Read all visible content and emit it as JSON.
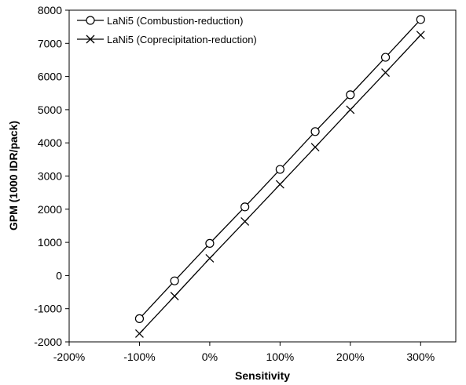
{
  "chart_data": {
    "type": "line",
    "xlabel": "Sensitivity",
    "ylabel": "GPM (1000 IDR/pack)",
    "xlim": [
      -200,
      350
    ],
    "ylim": [
      -2000,
      8000
    ],
    "x_ticks": [
      -200,
      -100,
      0,
      100,
      200,
      300
    ],
    "x_tick_labels": [
      "-200%",
      "-100%",
      "0%",
      "100%",
      "200%",
      "300%"
    ],
    "y_ticks": [
      -2000,
      -1000,
      0,
      1000,
      2000,
      3000,
      4000,
      5000,
      6000,
      7000,
      8000
    ],
    "y_tick_labels": [
      "-2000",
      "-1000",
      "0",
      "1000",
      "2000",
      "3000",
      "4000",
      "5000",
      "6000",
      "7000",
      "8000"
    ],
    "grid": false,
    "legend_position": "top-left",
    "x": [
      -100,
      -50,
      0,
      50,
      100,
      150,
      200,
      250,
      300
    ],
    "series": [
      {
        "name": "LaNi5 (Combustion-reduction)",
        "marker": "circle",
        "values": [
          -1300,
          -160,
          970,
          2070,
          3200,
          4340,
          5450,
          6580,
          7720
        ]
      },
      {
        "name": "LaNi5 (Coprecipitation-reduction)",
        "marker": "x",
        "values": [
          -1750,
          -620,
          520,
          1630,
          2750,
          3870,
          5000,
          6120,
          7250
        ]
      }
    ]
  }
}
